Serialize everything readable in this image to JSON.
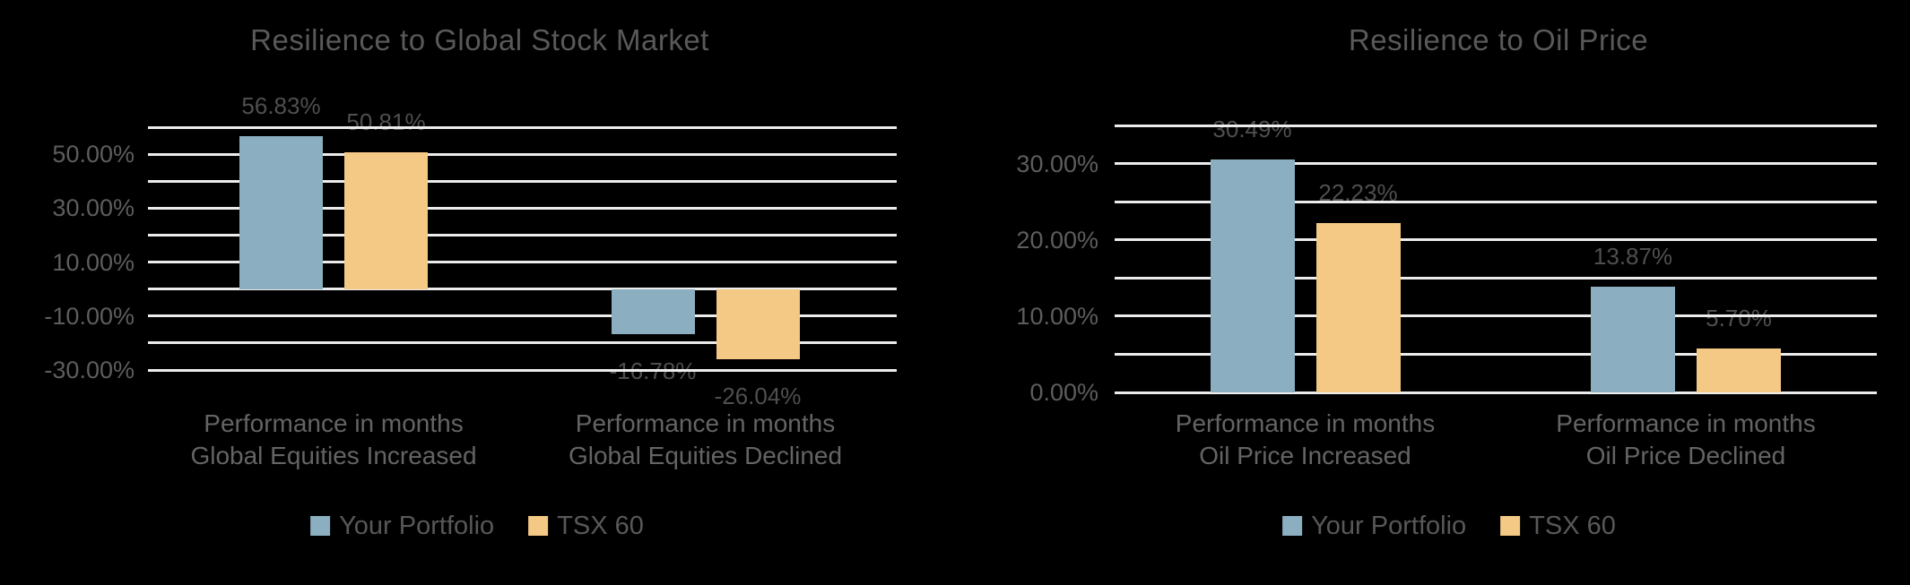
{
  "background": "#000000",
  "colors": {
    "gridline": "#ECECEC",
    "title_text": "#595959",
    "axis_text": "#5D5D5D",
    "data_label_text": "#4F4F4F",
    "category_text": "#646464",
    "legend_text": "#585858",
    "series_blue": "#8BAFC0",
    "series_orange": "#F4C986"
  },
  "chart_data": [
    {
      "type": "bar",
      "title": "Resilience to Global Stock Market",
      "categories": [
        "Performance in months\nGlobal Equities Increased",
        "Performance in months\nGlobal Equities Declined"
      ],
      "series": [
        {
          "name": "Your Portfolio",
          "color": "#8BAFC0",
          "values": [
            56.83,
            -16.78
          ],
          "labels": [
            "56.83%",
            "-16.78%"
          ]
        },
        {
          "name": "TSX 60",
          "color": "#F4C986",
          "values": [
            50.81,
            -26.04
          ],
          "labels": [
            "50.81%",
            "-26.04%"
          ]
        }
      ],
      "yticks": [
        {
          "value": 50,
          "label": "50.00%"
        },
        {
          "value": 30,
          "label": "30.00%"
        },
        {
          "value": 10,
          "label": "10.00%"
        },
        {
          "value": -10,
          "label": "-10.00%"
        },
        {
          "value": -30,
          "label": "-30.00%"
        }
      ],
      "ylim": [
        -30,
        60
      ],
      "grid_step": 10,
      "grid": true,
      "legend_position": "bottom",
      "xlabel": "",
      "ylabel": ""
    },
    {
      "type": "bar",
      "title": "Resilience to Oil Price",
      "categories": [
        "Performance in months\nOil Price Increased",
        "Performance in months\nOil Price Declined"
      ],
      "series": [
        {
          "name": "Your Portfolio",
          "color": "#8BAFC0",
          "values": [
            30.49,
            13.87
          ],
          "labels": [
            "30.49%",
            "13.87%"
          ]
        },
        {
          "name": "TSX 60",
          "color": "#F4C986",
          "values": [
            22.23,
            5.7
          ],
          "labels": [
            "22.23%",
            "5.70%"
          ]
        }
      ],
      "yticks": [
        {
          "value": 30,
          "label": "30.00%"
        },
        {
          "value": 20,
          "label": "20.00%"
        },
        {
          "value": 10,
          "label": "10.00%"
        },
        {
          "value": 0,
          "label": "0.00%"
        }
      ],
      "ylim": [
        0,
        35
      ],
      "grid_step": 5,
      "grid": true,
      "legend_position": "bottom",
      "xlabel": "",
      "ylabel": ""
    }
  ]
}
